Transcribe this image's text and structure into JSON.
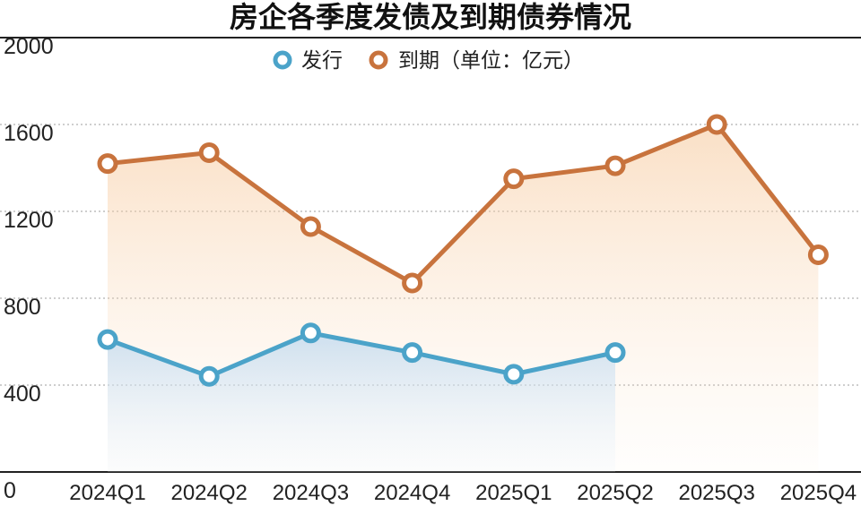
{
  "chart_data": {
    "type": "line",
    "title": "房企各季度发债及到期债券情况",
    "categories": [
      "2024Q1",
      "2024Q2",
      "2024Q3",
      "2024Q4",
      "2025Q1",
      "2025Q2",
      "2025Q3",
      "2025Q4"
    ],
    "series": [
      {
        "name": "发行",
        "color": "#4ba3c9",
        "values": [
          610,
          440,
          640,
          550,
          450,
          550,
          null,
          null
        ]
      },
      {
        "name": "到期",
        "color": "#c8733d",
        "values": [
          1420,
          1470,
          1130,
          870,
          1350,
          1410,
          1600,
          1000
        ]
      }
    ],
    "legend_suffix": "（单位：亿元）",
    "legend_position": "top-center",
    "ylim": [
      0,
      2000
    ],
    "yticks": [
      0,
      400,
      800,
      1200,
      1600,
      2000
    ],
    "grid": true,
    "xlabel": "",
    "ylabel": ""
  }
}
